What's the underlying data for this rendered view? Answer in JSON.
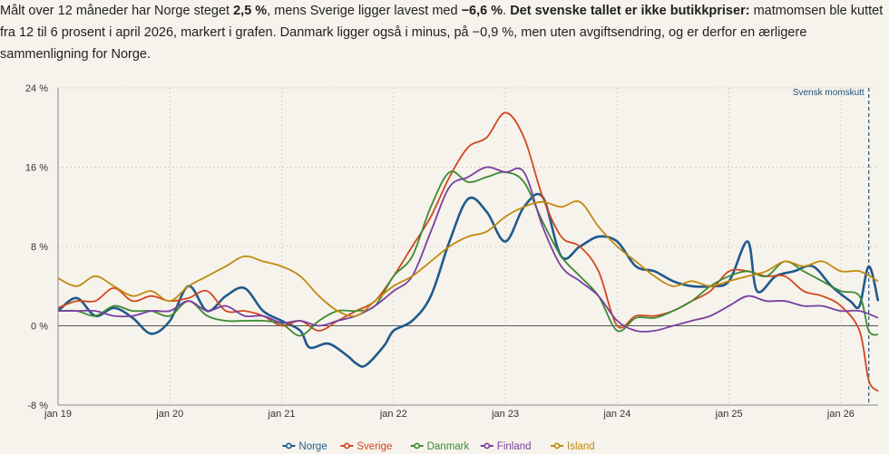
{
  "intro": {
    "p1": "Målt over 12 måneder har Norge steget ",
    "b1": "2,5 %",
    "p2": ", mens Sverige ligger lavest med ",
    "b2": "−6,6 %",
    "p3": ". ",
    "b3": "Det svenske tallet er ikke butikkpriser:",
    "p4": " matmomsen ble kuttet fra 12 til 6 prosent i april 2026, markert i grafen. Danmark ligger også i minus, på −0,9 %, men uten avgiftsendring, og er derfor en ærligere sammenligning for Norge."
  },
  "colors": {
    "Norge": "#1f5a8c",
    "Sverige": "#d1471f",
    "Danmark": "#3e8a33",
    "Finland": "#7a3fa2",
    "Island": "#c28a0e",
    "background": "#f6f3ec",
    "grid": "#c9c5bb",
    "annotation": "#24527a"
  },
  "chart_data": {
    "type": "line",
    "y_unit": "%",
    "ylim": [
      -8,
      24
    ],
    "yticks": [
      -8,
      0,
      8,
      16,
      24
    ],
    "ytick_labels": [
      "-8 %",
      "0 %",
      "8 %",
      "16 %",
      "24 %"
    ],
    "xlim": [
      "2019-01",
      "2026-05"
    ],
    "xticks": [
      "jan 19",
      "jan 20",
      "jan 21",
      "jan 22",
      "jan 23",
      "jan 24",
      "jan 25",
      "jan 26"
    ],
    "grid": "dotted",
    "legend_position": "bottom",
    "annotation": {
      "label": "Svensk momskutt",
      "x": "2026-04"
    },
    "series": [
      {
        "name": "Norge",
        "points": [
          [
            "2019-01",
            1.5
          ],
          [
            "2019-03",
            2.8
          ],
          [
            "2019-05",
            1.0
          ],
          [
            "2019-07",
            1.8
          ],
          [
            "2019-09",
            0.8
          ],
          [
            "2019-11",
            -0.8
          ],
          [
            "2020-01",
            0.5
          ],
          [
            "2020-03",
            4.0
          ],
          [
            "2020-05",
            1.5
          ],
          [
            "2020-07",
            3.0
          ],
          [
            "2020-09",
            3.8
          ],
          [
            "2020-11",
            1.5
          ],
          [
            "2021-01",
            0.5
          ],
          [
            "2021-03",
            -0.5
          ],
          [
            "2021-04",
            -2.2
          ],
          [
            "2021-06",
            -1.8
          ],
          [
            "2021-08",
            -3.0
          ],
          [
            "2021-09",
            -3.8
          ],
          [
            "2021-10",
            -4.0
          ],
          [
            "2021-12",
            -2.0
          ],
          [
            "2022-01",
            -0.5
          ],
          [
            "2022-03",
            0.5
          ],
          [
            "2022-05",
            3.0
          ],
          [
            "2022-07",
            8.5
          ],
          [
            "2022-09",
            12.8
          ],
          [
            "2022-11",
            11.5
          ],
          [
            "2023-01",
            8.5
          ],
          [
            "2023-03",
            12.0
          ],
          [
            "2023-05",
            13.0
          ],
          [
            "2023-07",
            7.0
          ],
          [
            "2023-09",
            8.0
          ],
          [
            "2023-11",
            9.0
          ],
          [
            "2024-01",
            8.5
          ],
          [
            "2024-03",
            6.0
          ],
          [
            "2024-05",
            5.5
          ],
          [
            "2024-07",
            4.5
          ],
          [
            "2024-09",
            4.0
          ],
          [
            "2024-11",
            4.0
          ],
          [
            "2025-01",
            4.5
          ],
          [
            "2025-03",
            8.5
          ],
          [
            "2025-04",
            3.5
          ],
          [
            "2025-06",
            5.0
          ],
          [
            "2025-08",
            5.5
          ],
          [
            "2025-10",
            6.0
          ],
          [
            "2025-12",
            4.0
          ],
          [
            "2026-02",
            2.5
          ],
          [
            "2026-03",
            2.0
          ],
          [
            "2026-04",
            6.0
          ],
          [
            "2026-05",
            2.5
          ]
        ]
      },
      {
        "name": "Sverige",
        "points": [
          [
            "2019-01",
            1.8
          ],
          [
            "2019-03",
            2.5
          ],
          [
            "2019-05",
            2.5
          ],
          [
            "2019-07",
            3.8
          ],
          [
            "2019-09",
            2.5
          ],
          [
            "2019-11",
            3.0
          ],
          [
            "2020-01",
            2.5
          ],
          [
            "2020-03",
            2.8
          ],
          [
            "2020-05",
            3.5
          ],
          [
            "2020-07",
            1.5
          ],
          [
            "2020-09",
            1.5
          ],
          [
            "2020-11",
            1.0
          ],
          [
            "2021-01",
            0.0
          ],
          [
            "2021-03",
            0.5
          ],
          [
            "2021-05",
            -0.5
          ],
          [
            "2021-07",
            0.5
          ],
          [
            "2021-09",
            1.5
          ],
          [
            "2021-11",
            2.5
          ],
          [
            "2022-01",
            5.0
          ],
          [
            "2022-03",
            8.0
          ],
          [
            "2022-05",
            11.0
          ],
          [
            "2022-07",
            15.0
          ],
          [
            "2022-09",
            18.0
          ],
          [
            "2022-11",
            19.0
          ],
          [
            "2023-01",
            21.5
          ],
          [
            "2023-03",
            19.0
          ],
          [
            "2023-05",
            13.0
          ],
          [
            "2023-07",
            9.0
          ],
          [
            "2023-09",
            8.0
          ],
          [
            "2023-11",
            5.5
          ],
          [
            "2024-01",
            0.0
          ],
          [
            "2024-03",
            1.0
          ],
          [
            "2024-05",
            1.0
          ],
          [
            "2024-07",
            1.5
          ],
          [
            "2024-09",
            2.5
          ],
          [
            "2024-11",
            3.5
          ],
          [
            "2025-01",
            5.5
          ],
          [
            "2025-03",
            5.5
          ],
          [
            "2025-05",
            5.0
          ],
          [
            "2025-07",
            5.0
          ],
          [
            "2025-09",
            3.5
          ],
          [
            "2025-11",
            3.0
          ],
          [
            "2026-01",
            2.0
          ],
          [
            "2026-03",
            -0.5
          ],
          [
            "2026-04",
            -5.5
          ],
          [
            "2026-05",
            -6.6
          ]
        ]
      },
      {
        "name": "Danmark",
        "points": [
          [
            "2019-01",
            1.5
          ],
          [
            "2019-03",
            1.5
          ],
          [
            "2019-05",
            1.0
          ],
          [
            "2019-07",
            2.0
          ],
          [
            "2019-09",
            1.5
          ],
          [
            "2019-11",
            1.5
          ],
          [
            "2020-01",
            1.0
          ],
          [
            "2020-03",
            2.5
          ],
          [
            "2020-05",
            1.0
          ],
          [
            "2020-07",
            0.5
          ],
          [
            "2020-09",
            0.5
          ],
          [
            "2020-11",
            0.5
          ],
          [
            "2021-01",
            0.2
          ],
          [
            "2021-03",
            -1.0
          ],
          [
            "2021-05",
            0.5
          ],
          [
            "2021-07",
            1.5
          ],
          [
            "2021-09",
            1.5
          ],
          [
            "2021-11",
            2.0
          ],
          [
            "2022-01",
            5.0
          ],
          [
            "2022-03",
            7.0
          ],
          [
            "2022-05",
            12.0
          ],
          [
            "2022-07",
            15.5
          ],
          [
            "2022-09",
            14.5
          ],
          [
            "2022-11",
            15.0
          ],
          [
            "2023-01",
            15.5
          ],
          [
            "2023-03",
            14.5
          ],
          [
            "2023-05",
            10.5
          ],
          [
            "2023-07",
            7.0
          ],
          [
            "2023-09",
            5.0
          ],
          [
            "2023-11",
            3.0
          ],
          [
            "2024-01",
            -0.5
          ],
          [
            "2024-03",
            0.8
          ],
          [
            "2024-05",
            0.8
          ],
          [
            "2024-07",
            1.5
          ],
          [
            "2024-09",
            2.5
          ],
          [
            "2024-11",
            4.0
          ],
          [
            "2025-01",
            5.0
          ],
          [
            "2025-03",
            5.5
          ],
          [
            "2025-05",
            5.0
          ],
          [
            "2025-07",
            6.5
          ],
          [
            "2025-09",
            5.5
          ],
          [
            "2025-11",
            4.5
          ],
          [
            "2026-01",
            3.5
          ],
          [
            "2026-03",
            3.0
          ],
          [
            "2026-04",
            -0.5
          ],
          [
            "2026-05",
            -0.9
          ]
        ]
      },
      {
        "name": "Finland",
        "points": [
          [
            "2019-01",
            1.5
          ],
          [
            "2019-03",
            1.5
          ],
          [
            "2019-05",
            1.5
          ],
          [
            "2019-07",
            1.0
          ],
          [
            "2019-09",
            1.0
          ],
          [
            "2019-11",
            1.5
          ],
          [
            "2020-01",
            1.5
          ],
          [
            "2020-03",
            2.5
          ],
          [
            "2020-05",
            1.5
          ],
          [
            "2020-07",
            2.0
          ],
          [
            "2020-09",
            1.0
          ],
          [
            "2020-11",
            1.0
          ],
          [
            "2021-01",
            0.3
          ],
          [
            "2021-03",
            0.5
          ],
          [
            "2021-05",
            0.0
          ],
          [
            "2021-07",
            0.5
          ],
          [
            "2021-09",
            1.0
          ],
          [
            "2021-11",
            2.0
          ],
          [
            "2022-01",
            3.5
          ],
          [
            "2022-03",
            5.0
          ],
          [
            "2022-05",
            9.5
          ],
          [
            "2022-07",
            14.0
          ],
          [
            "2022-09",
            15.0
          ],
          [
            "2022-11",
            16.0
          ],
          [
            "2023-01",
            15.5
          ],
          [
            "2023-03",
            15.5
          ],
          [
            "2023-05",
            10.0
          ],
          [
            "2023-07",
            6.0
          ],
          [
            "2023-09",
            4.5
          ],
          [
            "2023-11",
            3.0
          ],
          [
            "2024-01",
            0.5
          ],
          [
            "2024-03",
            -0.5
          ],
          [
            "2024-05",
            -0.5
          ],
          [
            "2024-07",
            0.0
          ],
          [
            "2024-09",
            0.5
          ],
          [
            "2024-11",
            1.0
          ],
          [
            "2025-01",
            2.0
          ],
          [
            "2025-03",
            3.0
          ],
          [
            "2025-05",
            2.5
          ],
          [
            "2025-07",
            2.5
          ],
          [
            "2025-09",
            2.0
          ],
          [
            "2025-11",
            2.0
          ],
          [
            "2026-01",
            1.5
          ],
          [
            "2026-03",
            1.5
          ],
          [
            "2026-05",
            0.8
          ]
        ]
      },
      {
        "name": "Island",
        "points": [
          [
            "2019-01",
            4.8
          ],
          [
            "2019-03",
            4.0
          ],
          [
            "2019-05",
            5.0
          ],
          [
            "2019-07",
            4.0
          ],
          [
            "2019-09",
            3.0
          ],
          [
            "2019-11",
            3.5
          ],
          [
            "2020-01",
            2.5
          ],
          [
            "2020-03",
            4.0
          ],
          [
            "2020-05",
            5.0
          ],
          [
            "2020-07",
            6.0
          ],
          [
            "2020-09",
            7.0
          ],
          [
            "2020-11",
            6.5
          ],
          [
            "2021-01",
            6.0
          ],
          [
            "2021-03",
            5.0
          ],
          [
            "2021-05",
            3.0
          ],
          [
            "2021-07",
            1.5
          ],
          [
            "2021-09",
            1.0
          ],
          [
            "2021-11",
            2.5
          ],
          [
            "2022-01",
            4.0
          ],
          [
            "2022-03",
            5.0
          ],
          [
            "2022-05",
            6.5
          ],
          [
            "2022-07",
            8.0
          ],
          [
            "2022-09",
            9.0
          ],
          [
            "2022-11",
            9.5
          ],
          [
            "2023-01",
            11.0
          ],
          [
            "2023-03",
            12.0
          ],
          [
            "2023-05",
            12.5
          ],
          [
            "2023-07",
            12.0
          ],
          [
            "2023-09",
            12.5
          ],
          [
            "2023-11",
            10.0
          ],
          [
            "2024-01",
            8.0
          ],
          [
            "2024-03",
            6.5
          ],
          [
            "2024-05",
            5.0
          ],
          [
            "2024-07",
            4.0
          ],
          [
            "2024-09",
            4.5
          ],
          [
            "2024-11",
            4.0
          ],
          [
            "2025-01",
            4.5
          ],
          [
            "2025-03",
            5.0
          ],
          [
            "2025-05",
            5.5
          ],
          [
            "2025-07",
            6.5
          ],
          [
            "2025-09",
            6.0
          ],
          [
            "2025-11",
            6.5
          ],
          [
            "2026-01",
            5.5
          ],
          [
            "2026-03",
            5.5
          ],
          [
            "2026-05",
            4.5
          ]
        ]
      }
    ]
  }
}
